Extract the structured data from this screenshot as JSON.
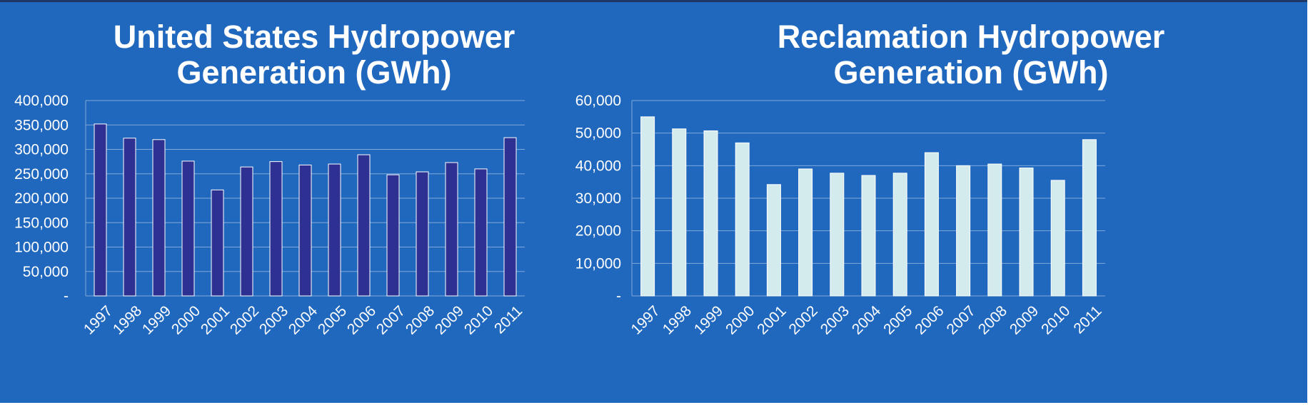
{
  "colors": {
    "background": "#2067BE",
    "us_bar": "#2E3192",
    "rec_bar": "#D3EBEC",
    "gridline": "#7FA8D8"
  },
  "chart_data": [
    {
      "type": "bar",
      "title_lines": [
        "United States Hydropower",
        "Generation (GWh)"
      ],
      "categories": [
        "1997",
        "1998",
        "1999",
        "2000",
        "2001",
        "2002",
        "2003",
        "2004",
        "2005",
        "2006",
        "2007",
        "2008",
        "2009",
        "2010",
        "2011"
      ],
      "values": [
        352000,
        323000,
        320000,
        276000,
        217000,
        264000,
        275000,
        268000,
        270000,
        289000,
        248000,
        254000,
        273000,
        260000,
        324000
      ],
      "ylim": [
        0,
        400000
      ],
      "yticks": [
        "-",
        "50,000",
        "100,000",
        "150,000",
        "200,000",
        "250,000",
        "300,000",
        "350,000",
        "400,000"
      ],
      "grid": true,
      "xlabel": "",
      "ylabel": ""
    },
    {
      "type": "bar",
      "title_lines": [
        "Reclamation Hydropower",
        "Generation (GWh)"
      ],
      "categories": [
        "1997",
        "1998",
        "1999",
        "2000",
        "2001",
        "2002",
        "2003",
        "2004",
        "2005",
        "2006",
        "2007",
        "2008",
        "2009",
        "2010",
        "2011"
      ],
      "values": [
        55000,
        51300,
        50700,
        47000,
        34200,
        39000,
        37700,
        37000,
        37700,
        44000,
        40000,
        40500,
        39300,
        35500,
        48000
      ],
      "ylim": [
        0,
        60000
      ],
      "yticks": [
        "-",
        "10,000",
        "20,000",
        "30,000",
        "40,000",
        "50,000",
        "60,000"
      ],
      "grid": true,
      "xlabel": "",
      "ylabel": ""
    }
  ]
}
